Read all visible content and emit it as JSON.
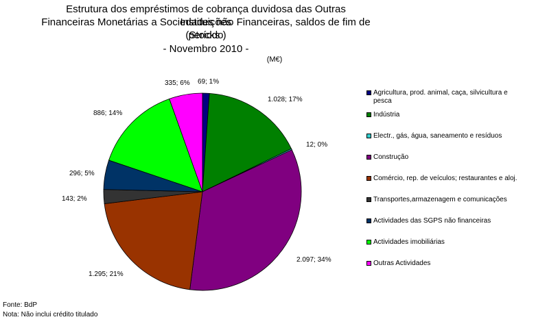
{
  "chart_data": {
    "type": "pie",
    "title_lines": [
      "Estrutura dos empréstimos de cobrança duvidosa das Outras Instituições",
      "Financeiras Monetárias a Sociedades não Financeiras, saldos de fim de período",
      "(Stocks )",
      "- Novembro 2010 -"
    ],
    "unit": "(M€)",
    "categories": [
      "Agricultura, prod. animal, caça, silvicultura e pesca",
      "Indústria",
      "Electr., gás, água, saneamento e resíduos",
      "Construção",
      "Comércio, rep. de veículos; restaurantes e aloj.",
      "Transportes,armazenagem e comunicações",
      "Actividades das SGPS não financeiras",
      "Actividades imobiliárias",
      "Outras Actividades"
    ],
    "values": [
      69,
      1028,
      12,
      2097,
      1295,
      143,
      296,
      886,
      335
    ],
    "data_labels": [
      "69; 1%",
      "1.028; 17%",
      "12; 0%",
      "2.097; 34%",
      "1.295; 21%",
      "143; 2%",
      "296; 5%",
      "886; 14%",
      "335; 6%"
    ],
    "colors": [
      "#000080",
      "#008000",
      "#33CCCC",
      "#800080",
      "#993300",
      "#333333",
      "#003366",
      "#00FF00",
      "#FF00FF"
    ],
    "legend_position": "right"
  },
  "footer": {
    "source": "Fonte: BdP",
    "note": "Nota: Não inclui crédito titulado"
  }
}
